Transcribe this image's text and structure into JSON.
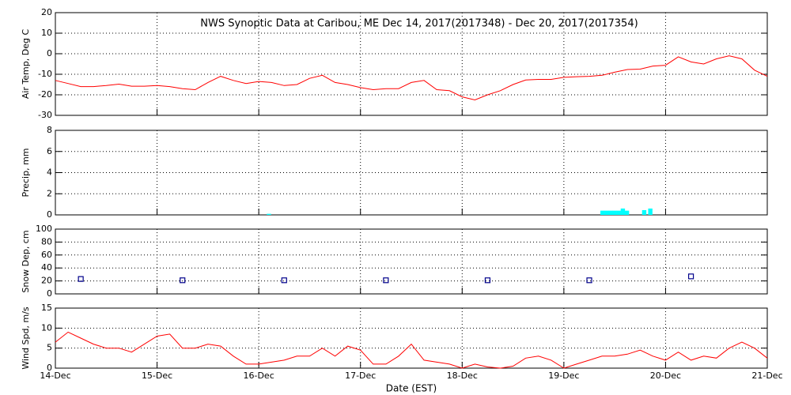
{
  "chart_data": [
    {
      "type": "line",
      "title": "NWS Synoptic Data at Caribou, ME   Dec 14, 2017(2017348) - Dec 20, 2017(2017354)",
      "ylabel": "Air Temp, Deg C",
      "xlim": [
        0,
        7
      ],
      "xticks": [
        0,
        1,
        2,
        3,
        4,
        5,
        6,
        7
      ],
      "ylim": [
        -30,
        20
      ],
      "yticks": [
        -30,
        -20,
        -10,
        0,
        10,
        20
      ],
      "grid": true,
      "series": [
        {
          "color": "#ff0000",
          "x": [
            0,
            0.125,
            0.25,
            0.375,
            0.5,
            0.625,
            0.75,
            0.875,
            1,
            1.125,
            1.25,
            1.375,
            1.5,
            1.625,
            1.75,
            1.875,
            2,
            2.125,
            2.25,
            2.375,
            2.5,
            2.625,
            2.75,
            2.875,
            3,
            3.125,
            3.25,
            3.375,
            3.5,
            3.625,
            3.75,
            3.875,
            4,
            4.125,
            4.25,
            4.375,
            4.5,
            4.625,
            4.75,
            4.875,
            5,
            5.125,
            5.25,
            5.375,
            5.5,
            5.625,
            5.75,
            5.875,
            6,
            6.125,
            6.25,
            6.375,
            6.5,
            6.625,
            6.75,
            6.875,
            7
          ],
          "values": [
            -13,
            -14.5,
            -16,
            -16,
            -15.5,
            -14.8,
            -15.8,
            -15.8,
            -15.5,
            -16,
            -17,
            -17.5,
            -14,
            -11,
            -13,
            -14.5,
            -13.5,
            -14,
            -15.5,
            -15,
            -12,
            -10.5,
            -14,
            -15,
            -16.5,
            -17.5,
            -17,
            -17,
            -14,
            -13,
            -17.5,
            -18,
            -21,
            -22.5,
            -20,
            -18,
            -15,
            -12.8,
            -12.5,
            -12.5,
            -11.5,
            -11.2,
            -11,
            -10.5,
            -9,
            -7.7,
            -7.5,
            -6,
            -5.6,
            -1.5,
            -4,
            -5,
            -2.5,
            -1,
            -2.5,
            -8,
            -11
          ]
        }
      ]
    },
    {
      "type": "bar",
      "ylabel": "Precip, mm",
      "xlim": [
        0,
        7
      ],
      "xticks": [
        0,
        1,
        2,
        3,
        4,
        5,
        6,
        7
      ],
      "ylim": [
        0,
        8
      ],
      "yticks": [
        0,
        2,
        4,
        6,
        8
      ],
      "grid": true,
      "bar_width": 0.042,
      "series": [
        {
          "color": "#00ffff",
          "x": [
            2.1,
            5.38,
            5.42,
            5.46,
            5.5,
            5.54,
            5.58,
            5.62,
            5.79,
            5.85
          ],
          "values": [
            0.1,
            0.4,
            0.4,
            0.4,
            0.4,
            0.4,
            0.6,
            0.4,
            0.45,
            0.6
          ]
        }
      ]
    },
    {
      "type": "scatter",
      "ylabel": "Snow Dep, cm",
      "xlim": [
        0,
        7
      ],
      "xticks": [
        0,
        1,
        2,
        3,
        4,
        5,
        6,
        7
      ],
      "ylim": [
        0,
        100
      ],
      "yticks": [
        0,
        20,
        40,
        60,
        80,
        100
      ],
      "grid": true,
      "series": [
        {
          "color": "#00008b",
          "x": [
            0.25,
            1.25,
            2.25,
            3.25,
            4.25,
            5.25,
            6.25
          ],
          "values": [
            23,
            21,
            21,
            21,
            21,
            21,
            27
          ]
        }
      ]
    },
    {
      "type": "line",
      "ylabel": "Wind Spd, m/s",
      "xlabel": "Date (EST)",
      "xlim": [
        0,
        7
      ],
      "xticks": [
        {
          "value": 0,
          "label": "14-Dec"
        },
        {
          "value": 1,
          "label": "15-Dec"
        },
        {
          "value": 2,
          "label": "16-Dec"
        },
        {
          "value": 3,
          "label": "17-Dec"
        },
        {
          "value": 4,
          "label": "18-Dec"
        },
        {
          "value": 5,
          "label": "19-Dec"
        },
        {
          "value": 6,
          "label": "20-Dec"
        },
        {
          "value": 7,
          "label": "21-Dec"
        }
      ],
      "ylim": [
        0,
        15
      ],
      "yticks": [
        0,
        5,
        10,
        15
      ],
      "grid": true,
      "series": [
        {
          "color": "#ff0000",
          "x": [
            0,
            0.125,
            0.25,
            0.375,
            0.5,
            0.625,
            0.75,
            0.875,
            1,
            1.125,
            1.25,
            1.375,
            1.5,
            1.625,
            1.75,
            1.875,
            2,
            2.125,
            2.25,
            2.375,
            2.5,
            2.625,
            2.75,
            2.875,
            3,
            3.125,
            3.25,
            3.375,
            3.5,
            3.625,
            3.75,
            3.875,
            4,
            4.125,
            4.25,
            4.375,
            4.5,
            4.625,
            4.75,
            4.875,
            5,
            5.125,
            5.25,
            5.375,
            5.5,
            5.625,
            5.75,
            5.875,
            6,
            6.125,
            6.25,
            6.375,
            6.5,
            6.625,
            6.75,
            6.875,
            7
          ],
          "values": [
            6.5,
            9,
            7.5,
            6,
            5,
            5,
            4,
            6,
            8,
            8.5,
            5,
            5,
            6,
            5.5,
            3,
            1,
            1,
            1.5,
            2,
            3,
            3,
            5,
            3,
            5.5,
            4.5,
            1,
            1,
            3,
            6,
            2,
            1.5,
            1,
            0,
            1,
            0.3,
            0,
            0.5,
            2.5,
            3,
            2,
            0,
            1,
            2,
            3,
            3,
            3.5,
            4.5,
            3,
            2,
            4,
            2,
            3,
            2.5,
            5,
            6.5,
            5,
            2.5
          ]
        }
      ]
    }
  ]
}
